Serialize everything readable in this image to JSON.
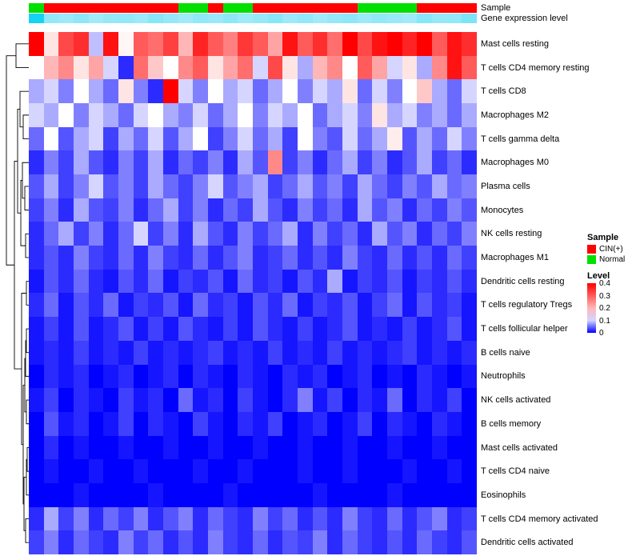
{
  "annotations": {
    "sample_label": "Sample",
    "gene_label": "Gene expression level"
  },
  "legend": {
    "sample_title": "Sample",
    "sample_items": [
      {
        "label": "CIN(+)",
        "color": "#FF0000"
      },
      {
        "label": "Normal",
        "color": "#00DF00"
      }
    ],
    "level_title": "Level",
    "level_ticks": [
      "0.4",
      "0.3",
      "0.2",
      "0.1",
      "0"
    ]
  },
  "chart_data": {
    "type": "heatmap",
    "rows": [
      "Mast cells resting",
      "T cells CD4 memory resting",
      "T cells CD8",
      "Macrophages M2",
      "T cells gamma delta",
      "Macrophages M0",
      "Plasma cells",
      "Monocytes",
      "NK cells resting",
      "Macrophages M1",
      "Dendritic cells resting",
      "T cells regulatory  Tregs",
      "T cells follicular helper",
      "B cells naive",
      "Neutrophils",
      "NK cells activated",
      "B cells memory",
      "Mast cells activated",
      "T cells CD4 naive",
      "Eosinophils",
      "T cells CD4 memory activated",
      "Dendritic cells activated"
    ],
    "n_cols": 30,
    "annotation_colors": {
      "CIN(+)": "#FF0000",
      "Normal": "#00DF00"
    },
    "sample_annotation": [
      "Normal",
      "CIN(+)",
      "CIN(+)",
      "CIN(+)",
      "CIN(+)",
      "CIN(+)",
      "CIN(+)",
      "CIN(+)",
      "CIN(+)",
      "CIN(+)",
      "Normal",
      "Normal",
      "CIN(+)",
      "Normal",
      "Normal",
      "CIN(+)",
      "CIN(+)",
      "CIN(+)",
      "CIN(+)",
      "CIN(+)",
      "CIN(+)",
      "CIN(+)",
      "Normal",
      "Normal",
      "Normal",
      "Normal",
      "CIN(+)",
      "CIN(+)",
      "CIN(+)",
      "CIN(+)"
    ],
    "gene_colorscale": {
      "low": "#CFF2FB",
      "high": "#00CFF2"
    },
    "gene_expression": [
      0.9,
      0.3,
      0.25,
      0.32,
      0.22,
      0.28,
      0.3,
      0.25,
      0.35,
      0.28,
      0.22,
      0.3,
      0.26,
      0.32,
      0.24,
      0.28,
      0.35,
      0.25,
      0.3,
      0.22,
      0.28,
      0.32,
      0.25,
      0.3,
      0.26,
      0.22,
      0.35,
      0.28,
      0.3,
      0.4
    ],
    "colorscale": {
      "min": 0,
      "mid": 0.12,
      "max": 0.4,
      "min_color": "#0000FF",
      "mid_color": "#FFFFFF",
      "max_color": "#FF0000"
    },
    "values": [
      [
        0.4,
        0.15,
        0.32,
        0.35,
        0.09,
        0.38,
        0.13,
        0.3,
        0.28,
        0.33,
        0.2,
        0.36,
        0.3,
        0.26,
        0.34,
        0.3,
        0.22,
        0.38,
        0.3,
        0.35,
        0.28,
        0.4,
        0.32,
        0.38,
        0.4,
        0.36,
        0.4,
        0.3,
        0.38,
        0.35
      ],
      [
        0.12,
        0.2,
        0.25,
        0.15,
        0.22,
        0.1,
        0.02,
        0.28,
        0.18,
        0.12,
        0.25,
        0.3,
        0.15,
        0.22,
        0.28,
        0.1,
        0.32,
        0.15,
        0.08,
        0.2,
        0.25,
        0.12,
        0.3,
        0.22,
        0.1,
        0.15,
        0.08,
        0.25,
        0.38,
        0.3
      ],
      [
        0.08,
        0.1,
        0.06,
        0.12,
        0.08,
        0.05,
        0.15,
        0.06,
        0.02,
        0.4,
        0.1,
        0.06,
        0.12,
        0.08,
        0.1,
        0.05,
        0.08,
        0.12,
        0.06,
        0.1,
        0.08,
        0.15,
        0.05,
        0.1,
        0.06,
        0.12,
        0.18,
        0.08,
        0.05,
        0.1
      ],
      [
        0.1,
        0.08,
        0.12,
        0.06,
        0.1,
        0.08,
        0.05,
        0.1,
        0.12,
        0.08,
        0.06,
        0.1,
        0.05,
        0.08,
        0.12,
        0.06,
        0.1,
        0.08,
        0.12,
        0.05,
        0.08,
        0.1,
        0.06,
        0.15,
        0.08,
        0.1,
        0.06,
        0.08,
        0.05,
        0.08
      ],
      [
        0.05,
        0.12,
        0.04,
        0.08,
        0.1,
        0.03,
        0.08,
        0.05,
        0.1,
        0.04,
        0.08,
        0.12,
        0.03,
        0.06,
        0.1,
        0.05,
        0.08,
        0.03,
        0.12,
        0.06,
        0.04,
        0.1,
        0.05,
        0.08,
        0.14,
        0.04,
        0.08,
        0.05,
        0.1,
        0.06
      ],
      [
        0.02,
        0.06,
        0.03,
        0.08,
        0.04,
        0.02,
        0.06,
        0.03,
        0.08,
        0.02,
        0.05,
        0.03,
        0.06,
        0.02,
        0.08,
        0.04,
        0.25,
        0.03,
        0.06,
        0.02,
        0.05,
        0.08,
        0.03,
        0.06,
        0.02,
        0.04,
        0.08,
        0.03,
        0.05,
        0.02
      ],
      [
        0.04,
        0.08,
        0.03,
        0.06,
        0.1,
        0.04,
        0.06,
        0.03,
        0.08,
        0.05,
        0.03,
        0.06,
        0.1,
        0.04,
        0.06,
        0.08,
        0.03,
        0.05,
        0.08,
        0.04,
        0.06,
        0.03,
        0.08,
        0.05,
        0.03,
        0.06,
        0.04,
        0.08,
        0.05,
        0.06
      ],
      [
        0.03,
        0.06,
        0.02,
        0.08,
        0.04,
        0.03,
        0.06,
        0.02,
        0.05,
        0.08,
        0.03,
        0.06,
        0.02,
        0.05,
        0.03,
        0.08,
        0.04,
        0.02,
        0.06,
        0.03,
        0.05,
        0.02,
        0.08,
        0.04,
        0.06,
        0.02,
        0.05,
        0.03,
        0.06,
        0.04
      ],
      [
        0.02,
        0.05,
        0.08,
        0.03,
        0.06,
        0.02,
        0.05,
        0.1,
        0.03,
        0.06,
        0.02,
        0.08,
        0.04,
        0.02,
        0.06,
        0.03,
        0.05,
        0.08,
        0.02,
        0.06,
        0.03,
        0.05,
        0.02,
        0.08,
        0.04,
        0.06,
        0.02,
        0.05,
        0.03,
        0.06
      ],
      [
        0.02,
        0.04,
        0.02,
        0.06,
        0.03,
        0.02,
        0.05,
        0.02,
        0.06,
        0.03,
        0.02,
        0.05,
        0.02,
        0.04,
        0.06,
        0.02,
        0.03,
        0.05,
        0.02,
        0.04,
        0.02,
        0.06,
        0.03,
        0.02,
        0.05,
        0.02,
        0.04,
        0.02,
        0.05,
        0.03
      ],
      [
        0.01,
        0.04,
        0.02,
        0.05,
        0.02,
        0.01,
        0.04,
        0.02,
        0.05,
        0.01,
        0.03,
        0.02,
        0.04,
        0.01,
        0.05,
        0.02,
        0.03,
        0.01,
        0.04,
        0.02,
        0.08,
        0.01,
        0.03,
        0.02,
        0.04,
        0.01,
        0.03,
        0.02,
        0.04,
        0.02
      ],
      [
        0.02,
        0.05,
        0.01,
        0.04,
        0.02,
        0.05,
        0.01,
        0.03,
        0.02,
        0.04,
        0.01,
        0.05,
        0.02,
        0.03,
        0.01,
        0.04,
        0.02,
        0.05,
        0.01,
        0.03,
        0.02,
        0.04,
        0.01,
        0.03,
        0.05,
        0.01,
        0.04,
        0.02,
        0.03,
        0.01
      ],
      [
        0.01,
        0.03,
        0.01,
        0.04,
        0.01,
        0.02,
        0.04,
        0.01,
        0.03,
        0.01,
        0.04,
        0.02,
        0.01,
        0.03,
        0.01,
        0.04,
        0.02,
        0.01,
        0.03,
        0.01,
        0.02,
        0.04,
        0.01,
        0.02,
        0.01,
        0.03,
        0.01,
        0.02,
        0.04,
        0.01
      ],
      [
        0.01,
        0.02,
        0.01,
        0.03,
        0.01,
        0.02,
        0.01,
        0.03,
        0.01,
        0.02,
        0.01,
        0.02,
        0.03,
        0.01,
        0.02,
        0.01,
        0.03,
        0.01,
        0.02,
        0.01,
        0.03,
        0.01,
        0.02,
        0.01,
        0.02,
        0.03,
        0.01,
        0.02,
        0.01,
        0.02
      ],
      [
        0.0,
        0.02,
        0.01,
        0.02,
        0.0,
        0.01,
        0.02,
        0.0,
        0.01,
        0.02,
        0.0,
        0.02,
        0.01,
        0.0,
        0.02,
        0.01,
        0.0,
        0.02,
        0.01,
        0.02,
        0.0,
        0.01,
        0.02,
        0.0,
        0.01,
        0.0,
        0.02,
        0.01,
        0.0,
        0.01
      ],
      [
        0.01,
        0.03,
        0.0,
        0.02,
        0.01,
        0.0,
        0.03,
        0.01,
        0.02,
        0.0,
        0.05,
        0.01,
        0.02,
        0.0,
        0.03,
        0.01,
        0.0,
        0.02,
        0.06,
        0.01,
        0.03,
        0.0,
        0.02,
        0.01,
        0.05,
        0.0,
        0.02,
        0.01,
        0.03,
        0.0
      ],
      [
        0.0,
        0.04,
        0.01,
        0.02,
        0.0,
        0.01,
        0.03,
        0.0,
        0.02,
        0.01,
        0.0,
        0.03,
        0.01,
        0.0,
        0.02,
        0.01,
        0.03,
        0.0,
        0.01,
        0.02,
        0.0,
        0.01,
        0.03,
        0.0,
        0.02,
        0.01,
        0.0,
        0.02,
        0.01,
        0.0
      ],
      [
        0.0,
        0.02,
        0.0,
        0.01,
        0.0,
        0.0,
        0.01,
        0.0,
        0.0,
        0.01,
        0.0,
        0.0,
        0.01,
        0.0,
        0.0,
        0.01,
        0.0,
        0.0,
        0.01,
        0.0,
        0.0,
        0.01,
        0.0,
        0.0,
        0.01,
        0.0,
        0.0,
        0.01,
        0.0,
        0.0
      ],
      [
        0.0,
        0.01,
        0.0,
        0.0,
        0.01,
        0.0,
        0.0,
        0.01,
        0.0,
        0.0,
        0.0,
        0.01,
        0.0,
        0.0,
        0.01,
        0.0,
        0.0,
        0.0,
        0.01,
        0.0,
        0.0,
        0.01,
        0.0,
        0.0,
        0.0,
        0.01,
        0.0,
        0.0,
        0.01,
        0.0
      ],
      [
        0.0,
        0.0,
        0.0,
        0.01,
        0.0,
        0.0,
        0.0,
        0.0,
        0.01,
        0.0,
        0.0,
        0.0,
        0.0,
        0.01,
        0.0,
        0.0,
        0.0,
        0.0,
        0.0,
        0.01,
        0.0,
        0.0,
        0.0,
        0.0,
        0.01,
        0.0,
        0.0,
        0.0,
        0.0,
        0.0
      ],
      [
        0.02,
        0.08,
        0.03,
        0.06,
        0.02,
        0.05,
        0.03,
        0.06,
        0.02,
        0.04,
        0.06,
        0.02,
        0.05,
        0.03,
        0.02,
        0.06,
        0.03,
        0.05,
        0.02,
        0.04,
        0.02,
        0.06,
        0.03,
        0.02,
        0.05,
        0.02,
        0.04,
        0.06,
        0.02,
        0.03
      ],
      [
        0.03,
        0.06,
        0.02,
        0.05,
        0.03,
        0.02,
        0.06,
        0.03,
        0.05,
        0.02,
        0.04,
        0.02,
        0.06,
        0.03,
        0.02,
        0.05,
        0.02,
        0.04,
        0.03,
        0.06,
        0.02,
        0.05,
        0.03,
        0.02,
        0.04,
        0.02,
        0.05,
        0.03,
        0.02,
        0.04
      ]
    ],
    "dendrogram": [
      [
        0,
        1,
        16
      ],
      [
        [
          [
            2,
            [
              3,
              4,
              7
            ],
            11
          ],
          [
            [
              5,
              [
                6,
                7,
                5
              ],
              8
            ],
            [
              8,
              9,
              4
            ],
            10
          ],
          14
        ],
        [
          [
            10,
            11,
            3
          ],
          [
            [
              [
                [
                  12,
                  13,
                  3
                ],
                14,
                4
              ],
              [
                15,
                16,
                3
              ],
              5
            ],
            [
              [
                [
                  17,
                  18,
                  2
                ],
                19,
                3
              ],
              [
                20,
                21,
                4
              ],
              6
            ],
            7
          ],
          9
        ],
        18
      ],
      28
    ]
  }
}
